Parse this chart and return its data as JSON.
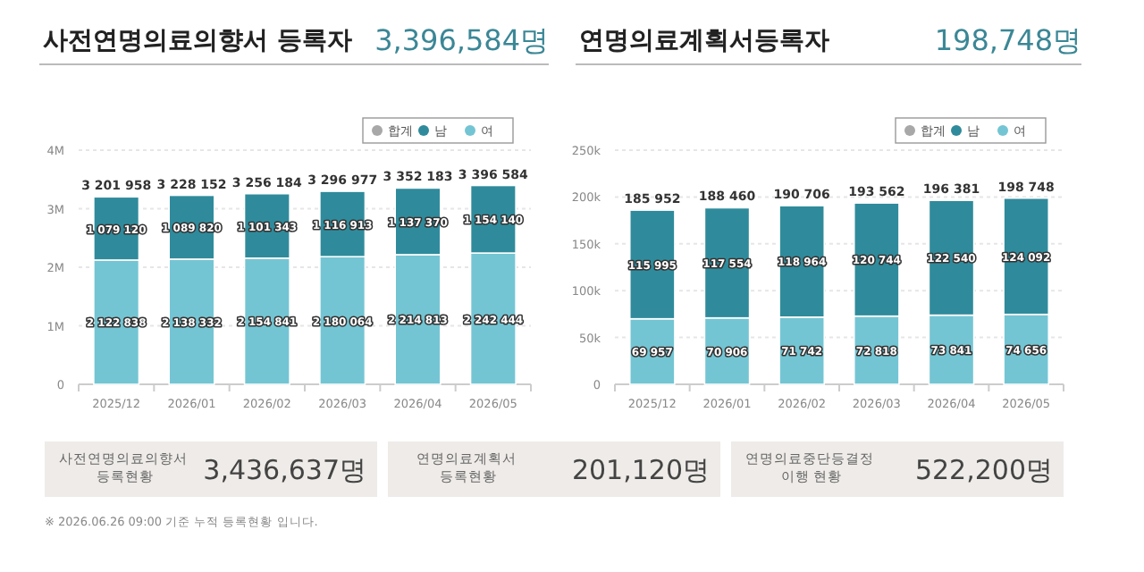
{
  "chart_data": [
    {
      "type": "bar",
      "title": "사전연명의료의향서 등록자",
      "subtitle": "3,396,584명",
      "stacked": true,
      "grid": "y",
      "legend": "top right",
      "categories": [
        "2025/12",
        "2026/01",
        "2026/02",
        "2026/03",
        "2026/04",
        "2026/05"
      ],
      "ylim": [
        0,
        4000000
      ],
      "yticks": [
        0,
        {
          "value": 1000000,
          "label": "1M"
        },
        {
          "value": 2000000,
          "label": "2M"
        },
        {
          "value": 3000000,
          "label": "3M"
        },
        {
          "value": 4000000,
          "label": "4M"
        }
      ],
      "series": [
        {
          "name": "여",
          "color": "#74c5d3",
          "values": [
            2122838,
            2138332,
            2154841,
            2180064,
            2214813,
            2242444
          ],
          "value_labels": [
            "2 122 838",
            "2 138 332",
            "2 154 841",
            "2 180 064",
            "2 214 813",
            "2 242 444"
          ]
        },
        {
          "name": "남",
          "color": "#2f8b9b",
          "values": [
            1079120,
            1089820,
            1101343,
            1116913,
            1137370,
            1154140
          ],
          "value_labels": [
            "1 079 120",
            "1 089 820",
            "1 101 343",
            "1 116 913",
            "1 137 370",
            "1 154 140"
          ]
        },
        {
          "name": "합계",
          "color": "#a8a8a8",
          "values": [
            null,
            null,
            null,
            null,
            null,
            null
          ]
        }
      ],
      "totals": [
        "3 201 958",
        "3 228 152",
        "3 256 184",
        "3 296 977",
        "3 352 183",
        "3 396 584"
      ]
    },
    {
      "type": "bar",
      "title": "연명의료계획서등록자",
      "subtitle": "198,748명",
      "stacked": true,
      "grid": "y",
      "legend": "top right",
      "categories": [
        "2025/12",
        "2026/01",
        "2026/02",
        "2026/03",
        "2026/04",
        "2026/05"
      ],
      "ylim": [
        0,
        250000
      ],
      "yticks": [
        0,
        {
          "value": 50000,
          "label": "50k"
        },
        {
          "value": 100000,
          "label": "100k"
        },
        {
          "value": 150000,
          "label": "150k"
        },
        {
          "value": 200000,
          "label": "200k"
        },
        {
          "value": 250000,
          "label": "250k"
        }
      ],
      "series": [
        {
          "name": "여",
          "color": "#74c5d3",
          "values": [
            69957,
            70906,
            71742,
            72818,
            73841,
            74656
          ],
          "value_labels": [
            "69 957",
            "70 906",
            "71 742",
            "72 818",
            "73 841",
            "74 656"
          ]
        },
        {
          "name": "남",
          "color": "#2f8b9b",
          "values": [
            115995,
            117554,
            118964,
            120744,
            122540,
            124092
          ],
          "value_labels": [
            "115 995",
            "117 554",
            "118 964",
            "120 744",
            "122 540",
            "124 092"
          ]
        },
        {
          "name": "합계",
          "color": "#a8a8a8",
          "values": [
            null,
            null,
            null,
            null,
            null,
            null
          ]
        }
      ],
      "totals": [
        "185 952",
        "188 460",
        "190 706",
        "193 562",
        "196 381",
        "198 748"
      ]
    },
    {
      "type": "other",
      "annotations": [
        "사전연명의료의향서 등록현황",
        "3,436,637명",
        "연명의료계획서 등록현황",
        "201,120명",
        "연명의료중단등결정 이행 현황",
        "522,200명",
        "※ 2026.06.26 09:00 기준 누적 등록현황 입니다."
      ]
    }
  ]
}
